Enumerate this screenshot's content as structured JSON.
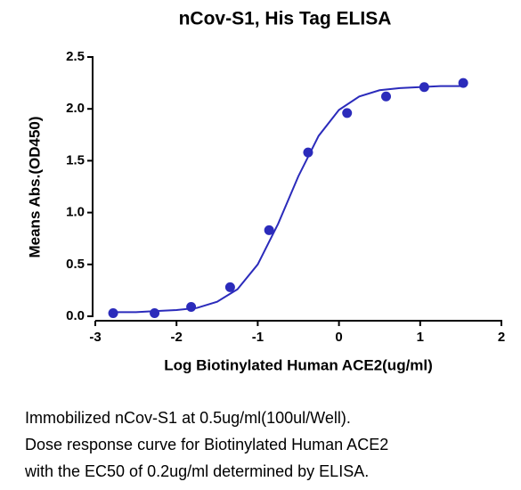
{
  "chart_data": {
    "type": "scatter",
    "title": "nCov-S1, His Tag ELISA",
    "x_label": "Log Biotinylated Human ACE2(ug/ml)",
    "y_label": "Means Abs.(OD450)",
    "xlim": [
      -3,
      2
    ],
    "xticks": [
      -3,
      -2,
      -1,
      0,
      1,
      2
    ],
    "ylim": [
      0,
      2.5
    ],
    "yticks": [
      {
        "value": 0,
        "label": "0.0"
      },
      0.5,
      {
        "value": 1,
        "label": "1.0"
      },
      1.5,
      {
        "value": 2,
        "label": "2.0"
      },
      2.5
    ],
    "series": [
      {
        "color": "#2b2bbb",
        "marker": "dot",
        "x": [
          -2.78,
          -2.27,
          -1.82,
          -1.34,
          -0.86,
          -0.38,
          0.1,
          0.58,
          1.05,
          1.53
        ],
        "values": [
          0.03,
          0.03,
          0.09,
          0.28,
          0.83,
          1.58,
          1.96,
          2.12,
          2.21,
          2.25
        ]
      },
      {
        "color": "#2b2bbb",
        "marker": "line",
        "x": [
          -2.8,
          -2.5,
          -2.25,
          -2,
          -1.75,
          -1.5,
          -1.25,
          -1,
          -0.75,
          -0.5,
          -0.25,
          0,
          0.25,
          0.5,
          0.75,
          1,
          1.25,
          1.55
        ],
        "values": [
          0.04,
          0.04,
          0.05,
          0.06,
          0.08,
          0.14,
          0.26,
          0.5,
          0.89,
          1.35,
          1.74,
          1.99,
          2.12,
          2.18,
          2.2,
          2.21,
          2.22,
          2.22
        ]
      }
    ]
  },
  "caption": [
    "Immobilized nCov-S1 at 0.5ug/ml(100ul/Well).",
    "Dose response curve for Biotinylated Human ACE2",
    "with the EC50 of 0.2ug/ml determined by ELISA."
  ]
}
